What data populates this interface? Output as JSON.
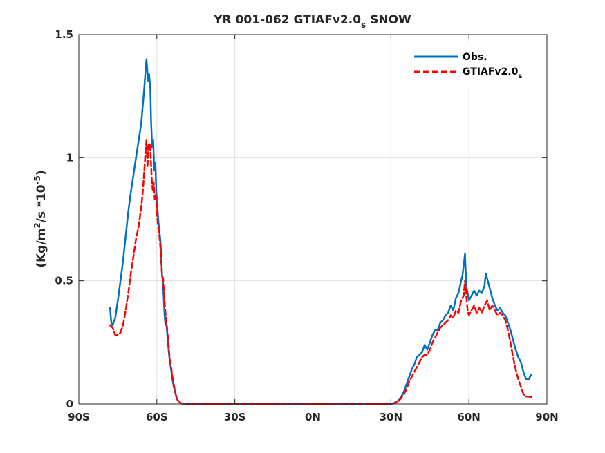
{
  "chart_data": {
    "type": "line",
    "title": "YR 001-062 GTIAFv2.0",
    "title_subscript": "s",
    "title_suffix": " SNOW",
    "xlabel": "",
    "ylabel_main": "(Kg/m",
    "ylabel_sup1": "2",
    "ylabel_mid": "/s *10",
    "ylabel_sup2": "-5",
    "ylabel_end": ")",
    "xlim": [
      -90,
      90
    ],
    "ylim": [
      0,
      1.5
    ],
    "x_ticks": [
      -90,
      -60,
      -30,
      0,
      30,
      60,
      90
    ],
    "x_tick_labels": [
      "90S",
      "60S",
      "30S",
      "0N",
      "30N",
      "60N",
      "90N"
    ],
    "y_ticks": [
      0,
      0.5,
      1,
      1.5
    ],
    "y_tick_labels": [
      "0",
      "0.5",
      "1",
      "1.5"
    ],
    "grid": true,
    "legend_position": "top-right",
    "series": [
      {
        "name": "Obs.",
        "color": "#0072bd",
        "style": "solid",
        "points": [
          [
            -78,
            0.39
          ],
          [
            -77.5,
            0.33
          ],
          [
            -77,
            0.32
          ],
          [
            -76,
            0.35
          ],
          [
            -75,
            0.42
          ],
          [
            -74,
            0.5
          ],
          [
            -73,
            0.58
          ],
          [
            -72,
            0.68
          ],
          [
            -71,
            0.78
          ],
          [
            -70,
            0.86
          ],
          [
            -69,
            0.93
          ],
          [
            -68,
            1.0
          ],
          [
            -67,
            1.07
          ],
          [
            -66,
            1.14
          ],
          [
            -65.5,
            1.2
          ],
          [
            -65,
            1.26
          ],
          [
            -64.5,
            1.33
          ],
          [
            -64,
            1.4
          ],
          [
            -63.7,
            1.36
          ],
          [
            -63.4,
            1.31
          ],
          [
            -63,
            1.34
          ],
          [
            -62.5,
            1.28
          ],
          [
            -62.2,
            1.14
          ],
          [
            -61.8,
            1.04
          ],
          [
            -61.4,
            1.07
          ],
          [
            -61,
            0.95
          ],
          [
            -60.6,
            0.98
          ],
          [
            -60.2,
            0.86
          ],
          [
            -59.8,
            0.8
          ],
          [
            -59.4,
            0.74
          ],
          [
            -59,
            0.7
          ],
          [
            -58.6,
            0.66
          ],
          [
            -58.3,
            0.6
          ],
          [
            -58,
            0.52
          ],
          [
            -57.7,
            0.5
          ],
          [
            -57.3,
            0.42
          ],
          [
            -57,
            0.36
          ],
          [
            -56.7,
            0.32
          ],
          [
            -56.3,
            0.33
          ],
          [
            -56,
            0.28
          ],
          [
            -55.5,
            0.22
          ],
          [
            -55,
            0.17
          ],
          [
            -54.5,
            0.14
          ],
          [
            -54,
            0.1
          ],
          [
            -53.5,
            0.07
          ],
          [
            -53,
            0.05
          ],
          [
            -52.5,
            0.03
          ],
          [
            -52,
            0.015
          ],
          [
            -51,
            0.005
          ],
          [
            -50,
            0.0
          ],
          [
            -40,
            0.0
          ],
          [
            -20,
            0.0
          ],
          [
            0,
            0.0
          ],
          [
            20,
            0.0
          ],
          [
            30,
            0.0
          ],
          [
            31,
            0.003
          ],
          [
            32,
            0.008
          ],
          [
            33,
            0.015
          ],
          [
            34,
            0.03
          ],
          [
            35,
            0.05
          ],
          [
            36,
            0.08
          ],
          [
            37,
            0.11
          ],
          [
            38,
            0.14
          ],
          [
            39,
            0.16
          ],
          [
            40,
            0.19
          ],
          [
            41,
            0.2
          ],
          [
            42,
            0.21
          ],
          [
            43,
            0.24
          ],
          [
            44,
            0.22
          ],
          [
            45,
            0.25
          ],
          [
            46,
            0.28
          ],
          [
            47,
            0.3
          ],
          [
            48,
            0.3
          ],
          [
            49,
            0.33
          ],
          [
            50,
            0.34
          ],
          [
            51,
            0.36
          ],
          [
            52,
            0.37
          ],
          [
            53,
            0.4
          ],
          [
            54,
            0.38
          ],
          [
            55,
            0.43
          ],
          [
            56,
            0.45
          ],
          [
            57,
            0.5
          ],
          [
            57.5,
            0.52
          ],
          [
            58,
            0.56
          ],
          [
            58.5,
            0.61
          ],
          [
            59,
            0.48
          ],
          [
            59.5,
            0.45
          ],
          [
            60,
            0.42
          ],
          [
            61,
            0.44
          ],
          [
            62,
            0.46
          ],
          [
            63,
            0.44
          ],
          [
            64,
            0.46
          ],
          [
            65,
            0.45
          ],
          [
            66,
            0.48
          ],
          [
            66.5,
            0.53
          ],
          [
            67,
            0.51
          ],
          [
            68,
            0.47
          ],
          [
            69,
            0.43
          ],
          [
            70,
            0.4
          ],
          [
            71,
            0.38
          ],
          [
            72,
            0.39
          ],
          [
            73,
            0.37
          ],
          [
            74,
            0.36
          ],
          [
            75,
            0.33
          ],
          [
            76,
            0.3
          ],
          [
            77,
            0.26
          ],
          [
            78,
            0.22
          ],
          [
            79,
            0.19
          ],
          [
            80,
            0.17
          ],
          [
            81,
            0.13
          ],
          [
            82,
            0.1
          ],
          [
            83,
            0.1
          ],
          [
            84,
            0.12
          ]
        ]
      },
      {
        "name": "GTIAFv2.0",
        "name_subscript": "s",
        "color": "#ff0000",
        "style": "dashed",
        "points": [
          [
            -78,
            0.32
          ],
          [
            -77,
            0.31
          ],
          [
            -76,
            0.28
          ],
          [
            -75,
            0.28
          ],
          [
            -74,
            0.29
          ],
          [
            -73,
            0.32
          ],
          [
            -72,
            0.38
          ],
          [
            -71,
            0.45
          ],
          [
            -70,
            0.53
          ],
          [
            -69,
            0.6
          ],
          [
            -68,
            0.67
          ],
          [
            -67,
            0.72
          ],
          [
            -66,
            0.8
          ],
          [
            -65.5,
            0.85
          ],
          [
            -65,
            0.92
          ],
          [
            -64.5,
            1.0
          ],
          [
            -64,
            1.07
          ],
          [
            -63.6,
            0.96
          ],
          [
            -63.2,
            1.05
          ],
          [
            -62.8,
            1.06
          ],
          [
            -62.4,
            1.02
          ],
          [
            -62,
            0.92
          ],
          [
            -61.6,
            0.87
          ],
          [
            -61.2,
            0.9
          ],
          [
            -60.8,
            0.83
          ],
          [
            -60.4,
            0.85
          ],
          [
            -60,
            0.78
          ],
          [
            -59.6,
            0.73
          ],
          [
            -59.2,
            0.7
          ],
          [
            -58.8,
            0.66
          ],
          [
            -58.4,
            0.6
          ],
          [
            -58,
            0.52
          ],
          [
            -57.6,
            0.51
          ],
          [
            -57.2,
            0.44
          ],
          [
            -56.8,
            0.38
          ],
          [
            -56.4,
            0.34
          ],
          [
            -56,
            0.3
          ],
          [
            -55.5,
            0.24
          ],
          [
            -55,
            0.18
          ],
          [
            -54.5,
            0.15
          ],
          [
            -54,
            0.11
          ],
          [
            -53.5,
            0.08
          ],
          [
            -53,
            0.05
          ],
          [
            -52.5,
            0.03
          ],
          [
            -52,
            0.015
          ],
          [
            -51,
            0.005
          ],
          [
            -50,
            0.0
          ],
          [
            -40,
            0.0
          ],
          [
            -20,
            0.0
          ],
          [
            0,
            0.0
          ],
          [
            20,
            0.0
          ],
          [
            30,
            0.0
          ],
          [
            31,
            0.002
          ],
          [
            32,
            0.006
          ],
          [
            33,
            0.012
          ],
          [
            34,
            0.025
          ],
          [
            35,
            0.04
          ],
          [
            36,
            0.06
          ],
          [
            37,
            0.09
          ],
          [
            38,
            0.11
          ],
          [
            39,
            0.13
          ],
          [
            40,
            0.15
          ],
          [
            41,
            0.17
          ],
          [
            42,
            0.19
          ],
          [
            43,
            0.2
          ],
          [
            44,
            0.2
          ],
          [
            45,
            0.22
          ],
          [
            46,
            0.25
          ],
          [
            47,
            0.27
          ],
          [
            48,
            0.29
          ],
          [
            49,
            0.31
          ],
          [
            50,
            0.32
          ],
          [
            51,
            0.33
          ],
          [
            52,
            0.34
          ],
          [
            53,
            0.36
          ],
          [
            54,
            0.35
          ],
          [
            55,
            0.38
          ],
          [
            56,
            0.37
          ],
          [
            57,
            0.42
          ],
          [
            58,
            0.44
          ],
          [
            58.5,
            0.5
          ],
          [
            59,
            0.44
          ],
          [
            59.5,
            0.38
          ],
          [
            60,
            0.36
          ],
          [
            61,
            0.38
          ],
          [
            62,
            0.4
          ],
          [
            63,
            0.37
          ],
          [
            64,
            0.39
          ],
          [
            65,
            0.37
          ],
          [
            66,
            0.4
          ],
          [
            67,
            0.42
          ],
          [
            68,
            0.38
          ],
          [
            69,
            0.4
          ],
          [
            70,
            0.38
          ],
          [
            71,
            0.36
          ],
          [
            72,
            0.37
          ],
          [
            73,
            0.36
          ],
          [
            74,
            0.34
          ],
          [
            75,
            0.3
          ],
          [
            76,
            0.25
          ],
          [
            77,
            0.19
          ],
          [
            78,
            0.14
          ],
          [
            79,
            0.1
          ],
          [
            80,
            0.07
          ],
          [
            81,
            0.04
          ],
          [
            82,
            0.03
          ],
          [
            83,
            0.03
          ],
          [
            84,
            0.028
          ]
        ]
      }
    ]
  }
}
